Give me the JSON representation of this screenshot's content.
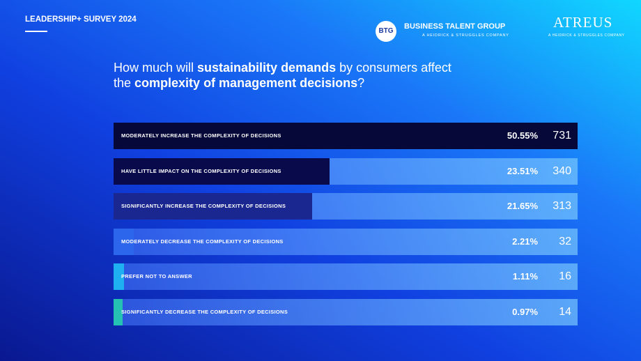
{
  "header": {
    "survey": "LEADERSHIP+ SURVEY 2024",
    "btg_badge": "BTG",
    "btg_name": "BUSINESS TALENT GROUP",
    "btg_sub": "A HEIDRICK & STRUGGLES COMPANY",
    "atreus_name": "ATREUS",
    "atreus_sub": "A HEIDRICK & STRUGGLES COMPANY"
  },
  "chart_data": {
    "type": "bar",
    "orientation": "horizontal",
    "title_lines": [
      [
        {
          "text": "How much will ",
          "bold": false
        },
        {
          "text": "sustainability demands",
          "bold": true
        },
        {
          "text": " by consumers affect",
          "bold": false
        }
      ],
      [
        {
          "text": "the ",
          "bold": false
        },
        {
          "text": "complexity of management decisions",
          "bold": true
        },
        {
          "text": "?",
          "bold": false
        }
      ]
    ],
    "categories": [
      "MODERATELY INCREASE THE COMPLEXITY OF DECISIONS",
      "HAVE LITTLE IMPACT ON THE COMPLEXITY OF DECISIONS",
      "SIGNIFICANTLY INCREASE THE COMPLEXITY OF DECISIONS",
      "MODERATELY DECREASE THE COMPLEXITY OF DECISIONS",
      "PREFER NOT TO ANSWER",
      "SIGNIFICANTLY DECREASE THE COMPLEXITY OF DECISIONS"
    ],
    "values": [
      50.55,
      23.51,
      21.65,
      2.21,
      1.11,
      0.97
    ],
    "value_labels": [
      "50.55%",
      "23.51%",
      "21.65%",
      "2.21%",
      "1.11%",
      "0.97%"
    ],
    "counts": [
      731,
      340,
      313,
      32,
      16,
      14
    ],
    "colors": [
      "#07083a",
      "#080a4c",
      "#1a2790",
      "#2b66ec",
      "#1fb0f2",
      "#25c2b4"
    ]
  }
}
